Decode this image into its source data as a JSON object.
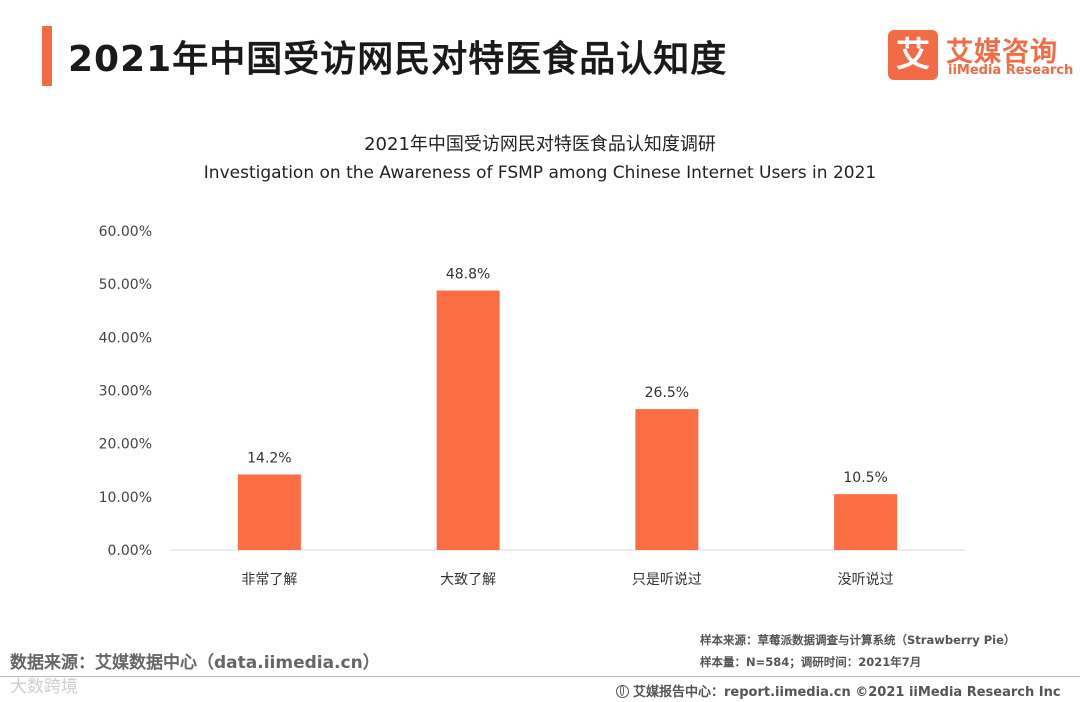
{
  "header": {
    "title": "2021年中国受访网民对特医食品认知度",
    "accent_color": "#f26b45"
  },
  "logo": {
    "mark": "艾",
    "name_cn": "艾媒咨询",
    "name_en": "iiMedia Research"
  },
  "chart_data": {
    "type": "bar",
    "title": "2021年中国受访网民对特医食品认知度调研",
    "subtitle": "Investigation on the Awareness of FSMP among Chinese Internet Users in 2021",
    "categories": [
      "非常了解",
      "大致了解",
      "只是听说过",
      "没听说过"
    ],
    "values": [
      14.2,
      48.8,
      26.5,
      10.5
    ],
    "value_labels": [
      "14.2%",
      "48.8%",
      "26.5%",
      "10.5%"
    ],
    "y_ticks": [
      "0.00%",
      "10.00%",
      "20.00%",
      "30.00%",
      "40.00%",
      "50.00%",
      "60.00%"
    ],
    "ylim": [
      0,
      60
    ],
    "xlabel": "",
    "ylabel": "",
    "grid": false,
    "bar_color": "#fb6d42"
  },
  "sources": {
    "left": "数据来源：艾媒数据中心（data.iimedia.cn）",
    "sample_source": "样本来源：草莓派数据调查与计算系统（Strawberry Pie）",
    "sample_size": "样本量：N=584；调研时间：2021年7月",
    "footer": "艾媒报告中心：report.iimedia.cn   ©2021  iiMedia Research  Inc",
    "watermark": "大数跨境"
  }
}
